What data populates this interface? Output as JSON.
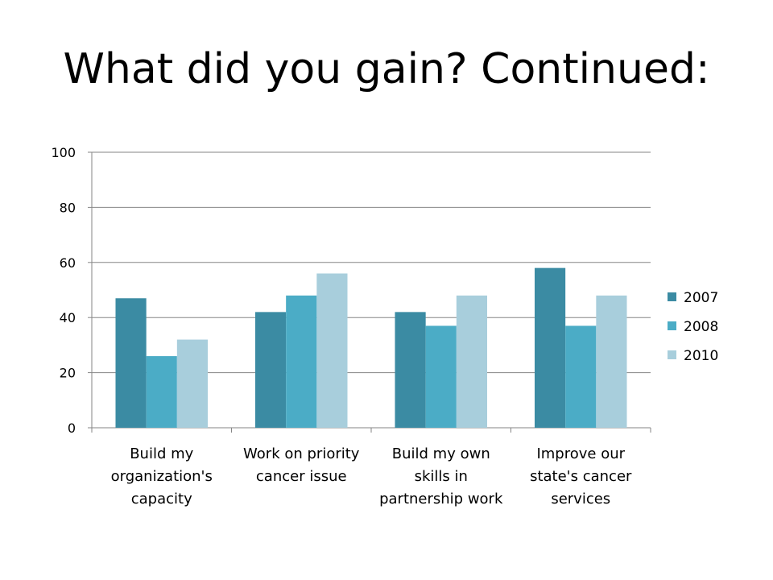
{
  "slide": {
    "title": "What did you gain?  Continued:"
  },
  "chart_data": {
    "type": "bar",
    "categories": [
      [
        "Build my",
        "organization's",
        "capacity"
      ],
      [
        "Work on priority",
        "cancer issue"
      ],
      [
        "Build my own",
        "skills in",
        "partnership work"
      ],
      [
        "Improve our",
        "state's cancer",
        "services"
      ]
    ],
    "series": [
      {
        "name": "2007",
        "color": "#3B8BA3",
        "values": [
          47,
          42,
          42,
          58
        ]
      },
      {
        "name": "2008",
        "color": "#4BACC6",
        "values": [
          26,
          48,
          37,
          37
        ]
      },
      {
        "name": "2010",
        "color": "#A8CEDC",
        "values": [
          32,
          56,
          48,
          48
        ]
      }
    ],
    "ylim": [
      0,
      100
    ],
    "yticks": [
      0,
      20,
      40,
      60,
      80,
      100
    ],
    "grid": true,
    "legend_position": "right",
    "title": "",
    "xlabel": "",
    "ylabel": ""
  }
}
